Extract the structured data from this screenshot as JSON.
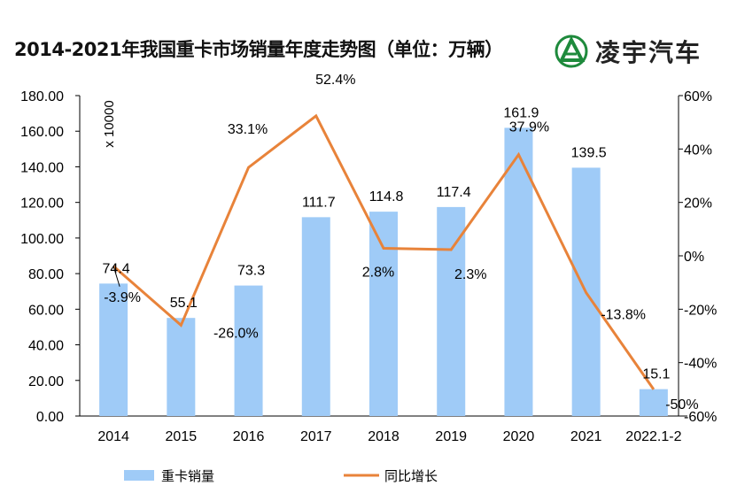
{
  "title": "2014-2021年我国重卡市场销量年度走势图（单位：万辆）",
  "logo": {
    "text": "凌宇汽车",
    "color": "#1e8a3c"
  },
  "chart_data": {
    "type": "bar+line",
    "title": "2014-2021年我国重卡市场销量年度走势图（单位：万辆）",
    "categories": [
      "2014",
      "2015",
      "2016",
      "2017",
      "2018",
      "2019",
      "2020",
      "2021",
      "2022.1-2"
    ],
    "series": [
      {
        "name": "重卡销量",
        "type": "bar",
        "axis": "left",
        "color": "#9fcbf7",
        "values": [
          74.4,
          55.1,
          73.3,
          111.7,
          114.8,
          117.4,
          161.9,
          139.5,
          15.1
        ],
        "labels": [
          "74.4",
          "55.1",
          "73.3",
          "111.7",
          "114.8",
          "117.4",
          "161.9",
          "139.5",
          "15.1"
        ]
      },
      {
        "name": "同比增长",
        "type": "line",
        "axis": "right",
        "color": "#e8833a",
        "values": [
          -3.9,
          -26.0,
          33.1,
          52.4,
          2.8,
          2.3,
          37.9,
          -13.8,
          -50
        ],
        "labels": [
          "-3.9%",
          "-26.0%",
          "33.1%",
          "52.4%",
          "2.8%",
          "2.3%",
          "37.9%",
          "-13.8%",
          "-50%"
        ]
      }
    ],
    "left_axis": {
      "range": [
        0,
        180
      ],
      "ticks": [
        "0.00",
        "20.00",
        "40.00",
        "60.00",
        "80.00",
        "100.00",
        "120.00",
        "140.00",
        "160.00",
        "180.00"
      ],
      "annotation": "x 10000"
    },
    "right_axis": {
      "range": [
        -60,
        60
      ],
      "ticks": [
        "-60%",
        "-40%",
        "-20%",
        "0%",
        "20%",
        "40%",
        "60%"
      ]
    },
    "grid": false,
    "legend": "bottom"
  }
}
